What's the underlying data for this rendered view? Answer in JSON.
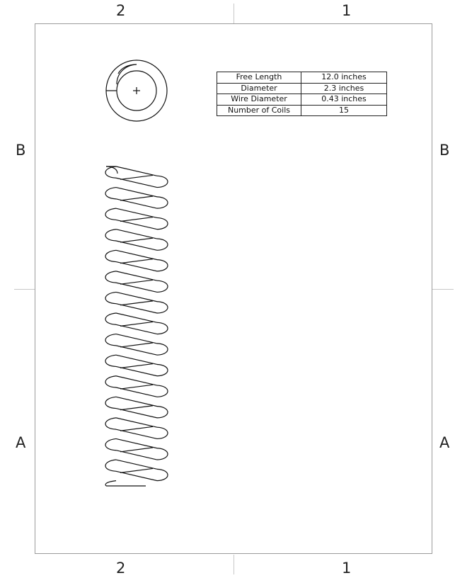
{
  "zones": {
    "top": [
      "2",
      "1"
    ],
    "bottom": [
      "2",
      "1"
    ],
    "left": [
      "B",
      "A"
    ],
    "right": [
      "B",
      "A"
    ]
  },
  "spring_table": {
    "rows": [
      {
        "label": "Free Length",
        "value": "12.0 inches"
      },
      {
        "label": "Diameter",
        "value": "2.3 inches"
      },
      {
        "label": "Wire Diameter",
        "value": "0.43 inches"
      },
      {
        "label": "Number of Coils",
        "value": "15"
      }
    ]
  },
  "colors": {
    "line": "#111111",
    "border": "#9a9a9a",
    "tick": "#c8c8c8"
  }
}
